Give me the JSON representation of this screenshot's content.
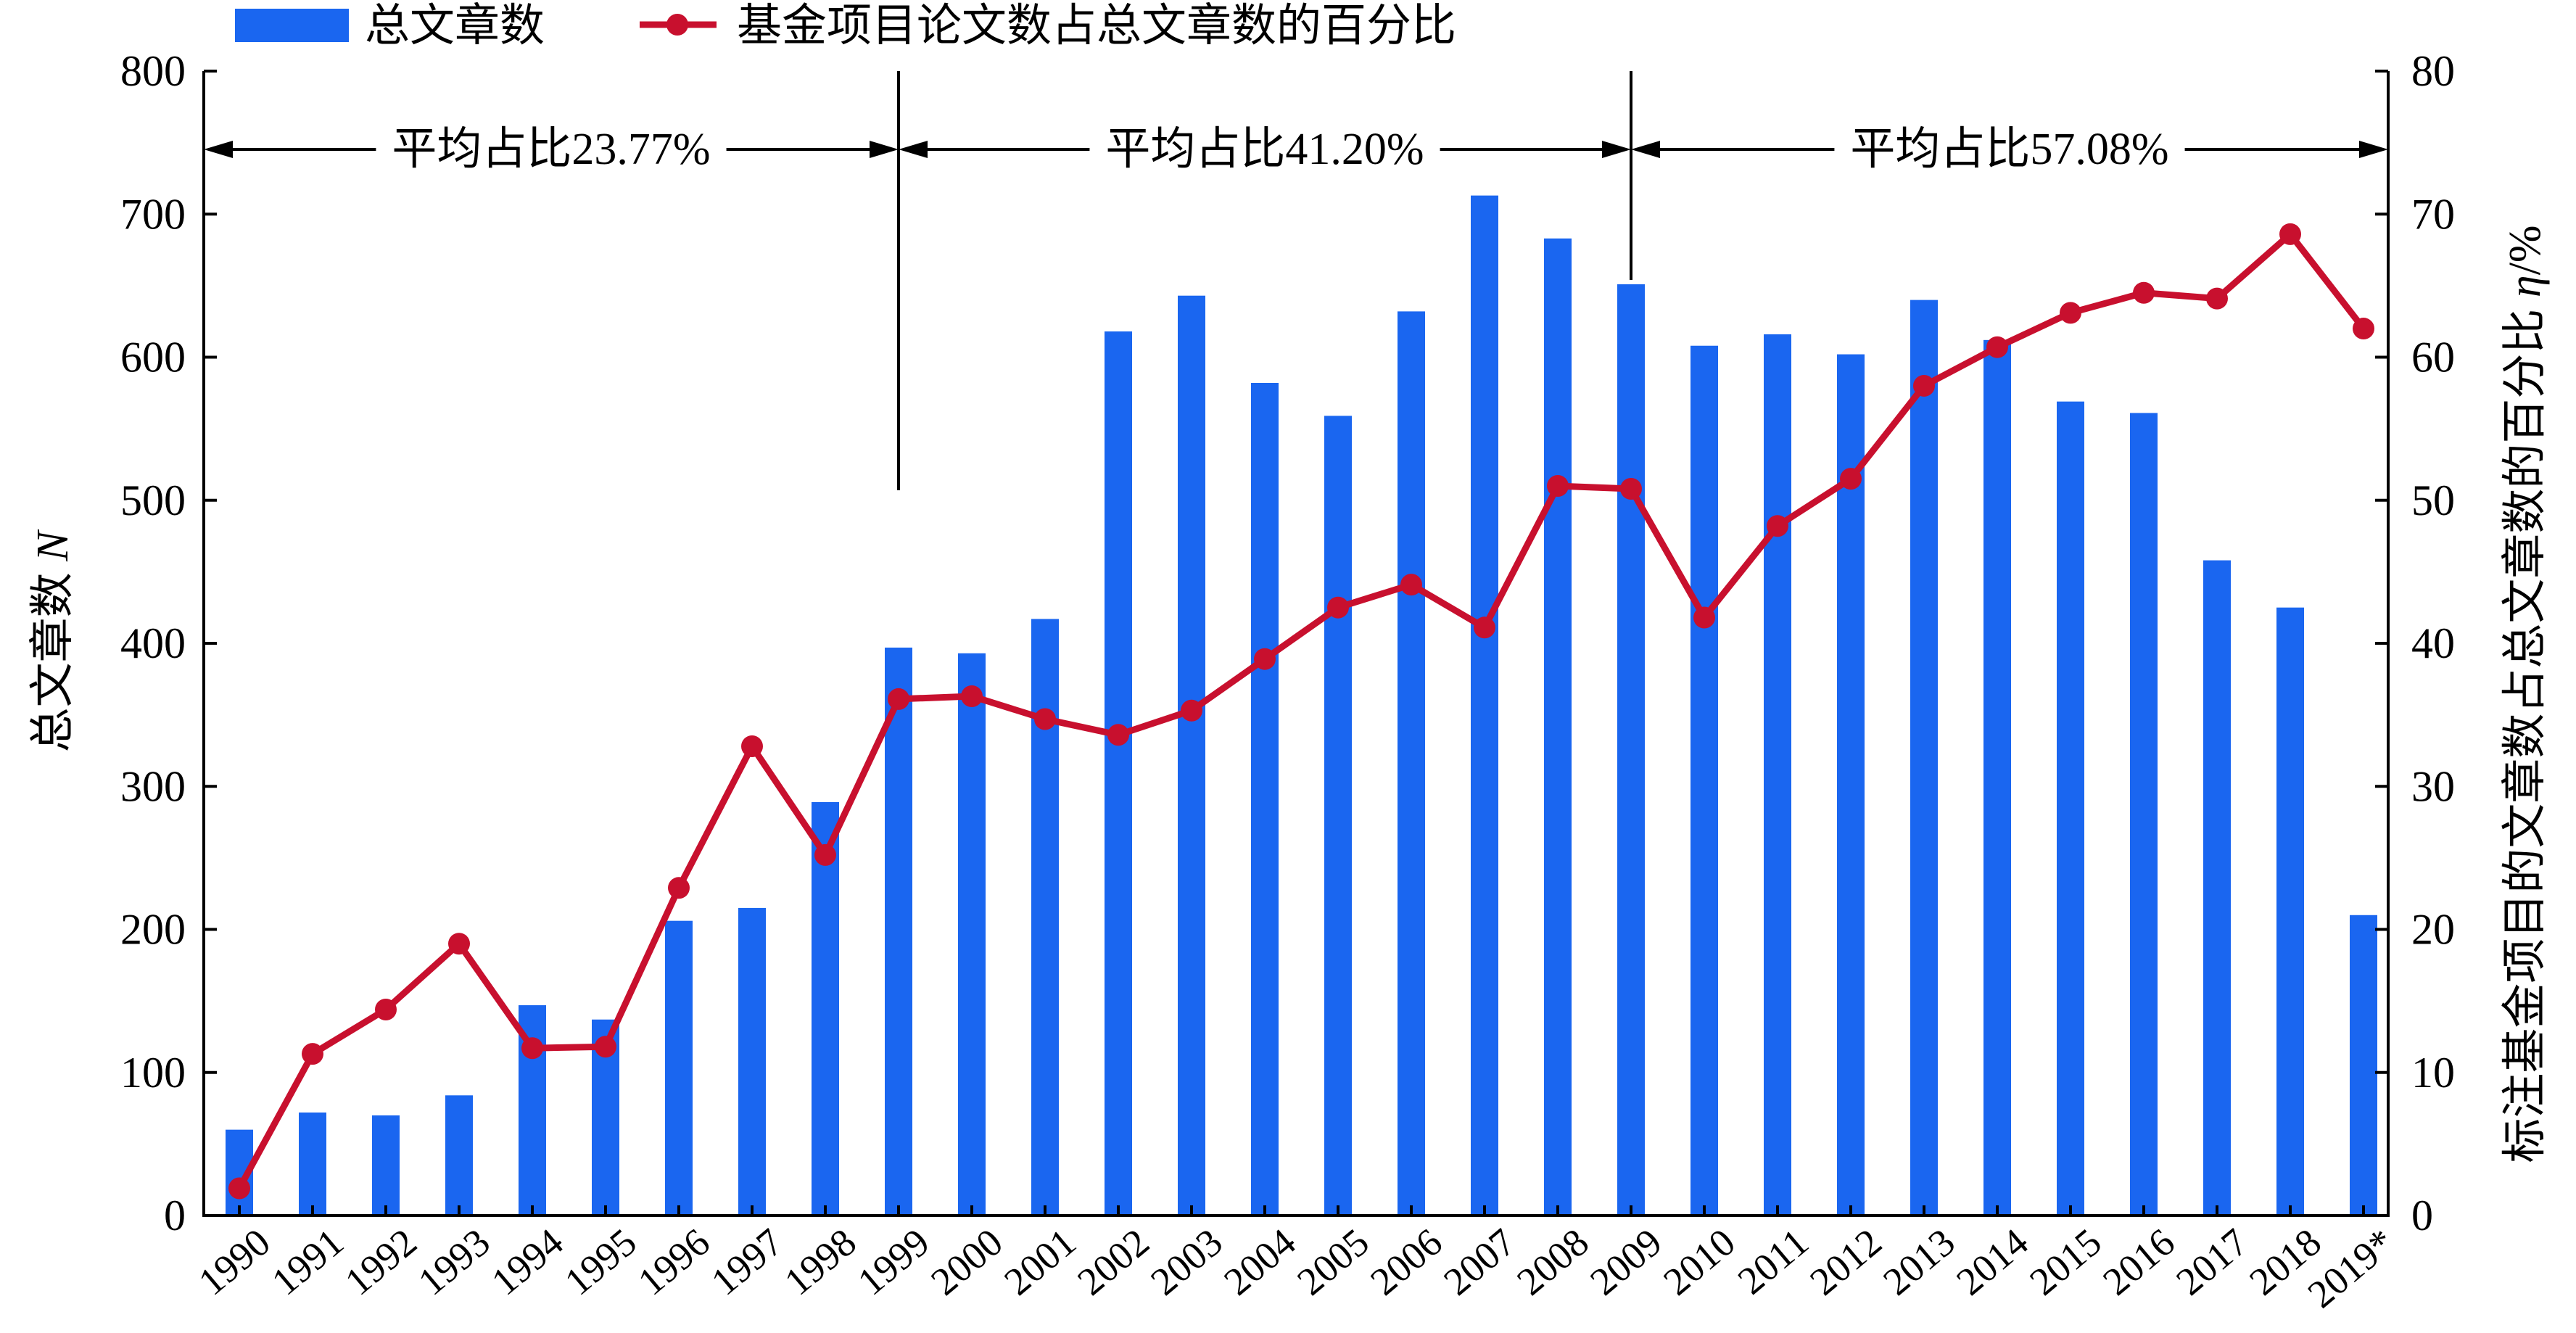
{
  "chart_data": {
    "type": "bar",
    "categories": [
      "1990",
      "1991",
      "1992",
      "1993",
      "1994",
      "1995",
      "1996",
      "1997",
      "1998",
      "1999",
      "2000",
      "2001",
      "2002",
      "2003",
      "2004",
      "2005",
      "2006",
      "2007",
      "2008",
      "2009",
      "2010",
      "2011",
      "2012",
      "2013",
      "2014",
      "2015",
      "2016",
      "2017",
      "2018",
      "2019*"
    ],
    "series": [
      {
        "name": "总文章数",
        "type": "bar",
        "axis": "left",
        "color": "#1a66f0",
        "values": [
          60,
          72,
          70,
          84,
          147,
          137,
          206,
          215,
          289,
          397,
          393,
          417,
          618,
          643,
          582,
          559,
          632,
          713,
          683,
          651,
          608,
          616,
          602,
          640,
          612,
          569,
          561,
          458,
          425,
          210
        ]
      },
      {
        "name": "基金项目论文数占总文章数的百分比",
        "type": "line",
        "axis": "right",
        "color": "#c8102e",
        "values": [
          1.9,
          11.3,
          14.4,
          19.0,
          11.7,
          11.8,
          22.9,
          32.8,
          25.2,
          36.1,
          36.3,
          34.7,
          33.6,
          35.3,
          38.9,
          42.5,
          44.1,
          41.1,
          51.0,
          50.8,
          41.8,
          48.2,
          51.5,
          58.0,
          60.7,
          63.1,
          64.5,
          64.1,
          68.6,
          62.0
        ]
      }
    ],
    "xlabel": "",
    "ylabel": "总文章数 N",
    "ylabel_right": "标注基金项目的文章数占总文章数的百分比 η/%",
    "ylim": [
      0,
      800
    ],
    "ylim_right": [
      0,
      80
    ],
    "yticks": [
      0,
      100,
      200,
      300,
      400,
      500,
      600,
      700,
      800
    ],
    "yticks_right": [
      0,
      10,
      20,
      30,
      40,
      50,
      60,
      70,
      80
    ],
    "grid": false,
    "legend": "top-left",
    "period_dividers": [
      "1999",
      "2009"
    ],
    "period_labels": [
      "平均占比23.77%",
      "平均占比41.20%",
      "平均占比57.08%"
    ]
  }
}
